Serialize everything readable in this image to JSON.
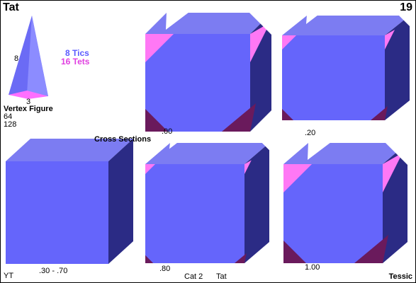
{
  "header": {
    "title": "Tat",
    "number": "19"
  },
  "vertex_figure": {
    "edge_labels": [
      "8",
      "3"
    ],
    "title": "Vertex Figure",
    "counts": [
      "64",
      "128"
    ]
  },
  "legend": {
    "tics": "8 Tics",
    "tets": "16 Tets"
  },
  "cross_sections": {
    "title": "Cross Sections",
    "labels": [
      ".00",
      ".20",
      ".30 - .70",
      ".80",
      "1.00"
    ]
  },
  "footer": {
    "left": "YT",
    "category": "Cat 2",
    "name": "Tat",
    "right": "Tessic"
  }
}
